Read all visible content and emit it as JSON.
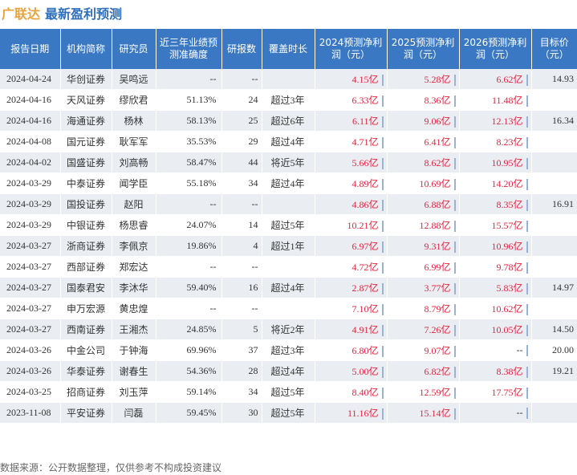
{
  "header": {
    "company": "广联达",
    "subtitle": "最新盈利预测"
  },
  "columns": [
    "报告日期",
    "机构简称",
    "研究员",
    "近三年业绩预测准确度",
    "研报数",
    "覆盖时长",
    "2024预测净利润（元）",
    "2025预测净利润（元）",
    "2026预测净利润（元）",
    "目标价（元）"
  ],
  "rows": [
    {
      "date": "2024-04-24",
      "org": "华创证券",
      "analyst": "吴鸣远",
      "acc": "--",
      "count": "--",
      "cover": "",
      "p2024": "4.15亿",
      "p2025": "5.28亿",
      "p2026": "6.62亿",
      "target": "14.93"
    },
    {
      "date": "2024-04-16",
      "org": "天风证券",
      "analyst": "缪欣君",
      "acc": "51.13%",
      "count": "24",
      "cover": "超过3年",
      "p2024": "6.33亿",
      "p2025": "8.36亿",
      "p2026": "11.48亿",
      "target": ""
    },
    {
      "date": "2024-04-16",
      "org": "海通证券",
      "analyst": "杨林",
      "acc": "58.13%",
      "count": "25",
      "cover": "超过6年",
      "p2024": "6.11亿",
      "p2025": "9.06亿",
      "p2026": "12.13亿",
      "target": "16.34"
    },
    {
      "date": "2024-04-08",
      "org": "国元证券",
      "analyst": "耿军军",
      "acc": "35.53%",
      "count": "29",
      "cover": "超过4年",
      "p2024": "4.71亿",
      "p2025": "6.41亿",
      "p2026": "8.23亿",
      "target": ""
    },
    {
      "date": "2024-04-02",
      "org": "国盛证券",
      "analyst": "刘高畅",
      "acc": "58.47%",
      "count": "44",
      "cover": "将近5年",
      "p2024": "5.66亿",
      "p2025": "8.62亿",
      "p2026": "10.95亿",
      "target": ""
    },
    {
      "date": "2024-03-29",
      "org": "中泰证券",
      "analyst": "闻学臣",
      "acc": "55.18%",
      "count": "34",
      "cover": "超过4年",
      "p2024": "4.89亿",
      "p2025": "10.69亿",
      "p2026": "14.20亿",
      "target": ""
    },
    {
      "date": "2024-03-29",
      "org": "国投证券",
      "analyst": "赵阳",
      "acc": "--",
      "count": "--",
      "cover": "",
      "p2024": "4.86亿",
      "p2025": "6.88亿",
      "p2026": "8.35亿",
      "target": "16.91"
    },
    {
      "date": "2024-03-29",
      "org": "中银证券",
      "analyst": "杨思睿",
      "acc": "24.07%",
      "count": "14",
      "cover": "超过5年",
      "p2024": "10.21亿",
      "p2025": "12.88亿",
      "p2026": "15.57亿",
      "target": ""
    },
    {
      "date": "2024-03-27",
      "org": "浙商证券",
      "analyst": "李佩京",
      "acc": "19.86%",
      "count": "4",
      "cover": "超过1年",
      "p2024": "6.97亿",
      "p2025": "9.31亿",
      "p2026": "10.96亿",
      "target": ""
    },
    {
      "date": "2024-03-27",
      "org": "西部证券",
      "analyst": "郑宏达",
      "acc": "--",
      "count": "--",
      "cover": "",
      "p2024": "4.72亿",
      "p2025": "6.99亿",
      "p2026": "9.78亿",
      "target": ""
    },
    {
      "date": "2024-03-27",
      "org": "国泰君安",
      "analyst": "李沐华",
      "acc": "59.40%",
      "count": "16",
      "cover": "超过4年",
      "p2024": "2.87亿",
      "p2025": "3.77亿",
      "p2026": "5.83亿",
      "target": "14.97"
    },
    {
      "date": "2024-03-27",
      "org": "申万宏源",
      "analyst": "黄忠煌",
      "acc": "--",
      "count": "--",
      "cover": "",
      "p2024": "7.10亿",
      "p2025": "8.79亿",
      "p2026": "10.62亿",
      "target": ""
    },
    {
      "date": "2024-03-27",
      "org": "西南证券",
      "analyst": "王湘杰",
      "acc": "24.85%",
      "count": "5",
      "cover": "将近2年",
      "p2024": "4.91亿",
      "p2025": "7.26亿",
      "p2026": "10.05亿",
      "target": "14.50"
    },
    {
      "date": "2024-03-26",
      "org": "中金公司",
      "analyst": "于钟海",
      "acc": "69.96%",
      "count": "37",
      "cover": "超过3年",
      "p2024": "6.80亿",
      "p2025": "9.07亿",
      "p2026": "--",
      "target": "20.00"
    },
    {
      "date": "2024-03-26",
      "org": "华泰证券",
      "analyst": "谢春生",
      "acc": "54.36%",
      "count": "28",
      "cover": "超过4年",
      "p2024": "5.00亿",
      "p2025": "6.82亿",
      "p2026": "8.38亿",
      "target": "19.21"
    },
    {
      "date": "2024-03-25",
      "org": "招商证券",
      "analyst": "刘玉萍",
      "acc": "59.14%",
      "count": "34",
      "cover": "超过5年",
      "p2024": "8.40亿",
      "p2025": "12.59亿",
      "p2026": "17.75亿",
      "target": ""
    },
    {
      "date": "2023-11-08",
      "org": "平安证券",
      "analyst": "闫磊",
      "acc": "59.45%",
      "count": "30",
      "cover": "超过5年",
      "p2024": "11.16亿",
      "p2025": "15.14亿",
      "p2026": "--",
      "target": ""
    }
  ],
  "footer": "数据来源：公开数据整理，仅供参考不构成投资建议",
  "colors": {
    "header_bg": "#3a78c3",
    "profit_text": "#e0263d",
    "title_company": "#e8a33d",
    "title_sub": "#2f6fbd"
  }
}
